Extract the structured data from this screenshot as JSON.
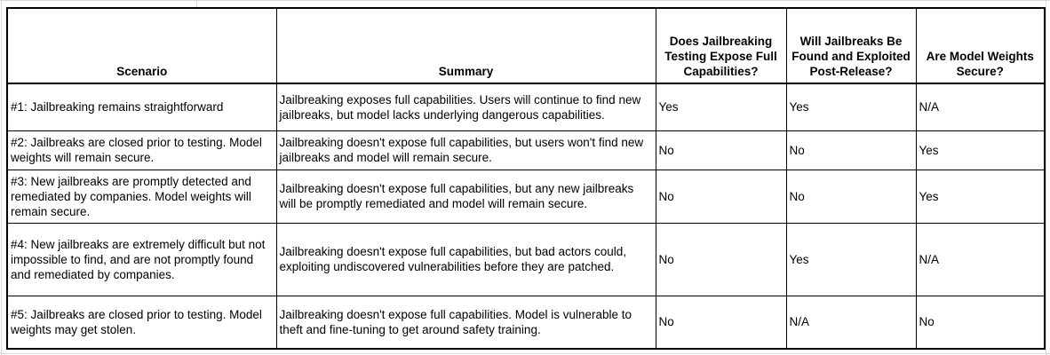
{
  "table": {
    "columns": [
      "Scenario",
      "Summary",
      "Does Jailbreaking Testing Expose Full Capabilities?",
      "Will Jailbreaks Be Found and Exploited Post-Release?",
      "Are Model Weights Secure?"
    ],
    "rows": [
      [
        "#1: Jailbreaking remains straightforward",
        "Jailbreaking exposes full capabilities. Users will continue to find new jailbreaks, but model lacks underlying dangerous capabilities.",
        "Yes",
        "Yes",
        "N/A"
      ],
      [
        "#2: Jailbreaks are closed prior to testing. Model weights will remain secure.",
        "Jailbreaking doesn't expose full capabilities, but users won't find new jailbreaks and model will remain secure.",
        "No",
        "No",
        "Yes"
      ],
      [
        "#3: New jailbreaks are promptly detected and remediated by companies. Model weights will remain secure.",
        "Jailbreaking doesn't expose full capabilities, but any new jailbreaks will be promptly remediated and model will remain secure.",
        "No",
        "No",
        "Yes"
      ],
      [
        "#4: New jailbreaks are extremely difficult but not impossible to find, and are not promptly found and remediated by companies.",
        "Jailbreaking doesn't expose full capabilities, but bad actors could, exploiting undiscovered vulnerabilities before they are patched.",
        "No",
        "Yes",
        "N/A"
      ],
      [
        "#5: Jailbreaks are closed prior to testing. Model weights may get stolen.",
        "Jailbreaking doesn't expose full capabilities. Model is vulnerable to theft and fine-tuning to get around safety training.",
        "No",
        "N/A",
        "No"
      ]
    ]
  }
}
